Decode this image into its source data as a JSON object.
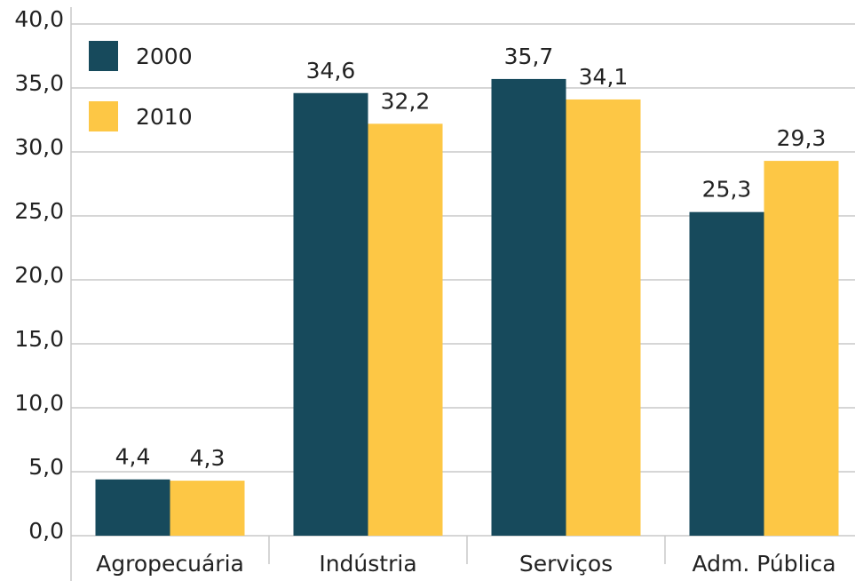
{
  "chart_data": {
    "type": "bar",
    "categories": [
      "Agropecuária",
      "Indústria",
      "Serviços",
      "Adm. Pública"
    ],
    "series": [
      {
        "name": "2000",
        "color": "#174a5c",
        "values": [
          4.4,
          34.6,
          35.7,
          25.3
        ],
        "value_labels": [
          "4,4",
          "34,6",
          "35,7",
          "25,3"
        ]
      },
      {
        "name": "2010",
        "color": "#fdc745",
        "values": [
          4.3,
          32.2,
          34.1,
          29.3
        ],
        "value_labels": [
          "4,3",
          "32,2",
          "34,1",
          "29,3"
        ]
      }
    ],
    "ylim": [
      0,
      40
    ],
    "yticks": [
      {
        "value": 0,
        "label": "0,0"
      },
      {
        "value": 5,
        "label": "5,0"
      },
      {
        "value": 10,
        "label": "10,0"
      },
      {
        "value": 15,
        "label": "15,0"
      },
      {
        "value": 20,
        "label": "20,0"
      },
      {
        "value": 25,
        "label": "25,0"
      },
      {
        "value": 30,
        "label": "30,0"
      },
      {
        "value": 35,
        "label": "35,0"
      },
      {
        "value": 40,
        "label": "40,0"
      }
    ],
    "grid": true,
    "legend": "top-left"
  }
}
